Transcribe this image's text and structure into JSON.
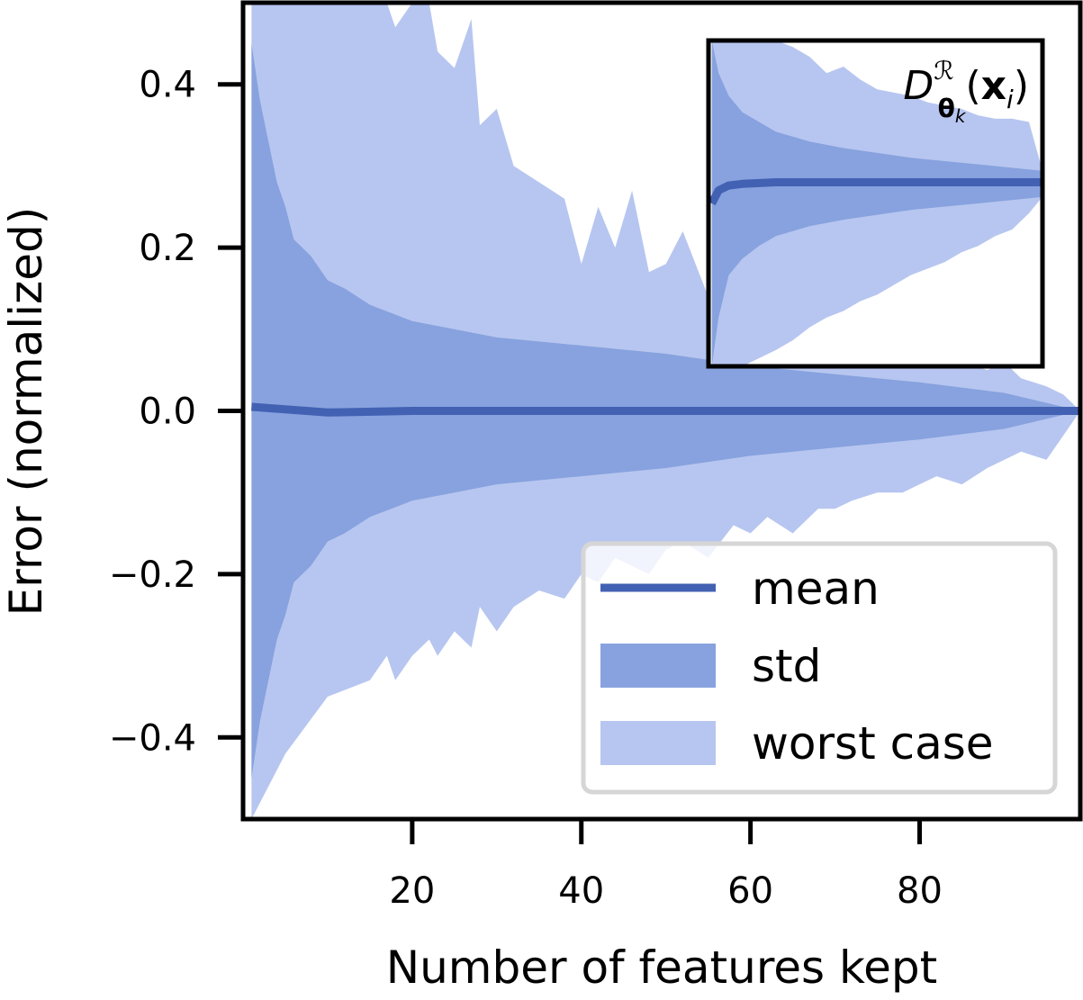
{
  "chart_data": {
    "type": "area",
    "xlabel": "Number of features kept",
    "ylabel": "Error (normalized)",
    "xlim": [
      0,
      99
    ],
    "ylim": [
      -0.5,
      0.5
    ],
    "x_ticks": [
      20,
      40,
      60,
      80
    ],
    "x_tick_labels": [
      "20",
      "40",
      "60",
      "80"
    ],
    "y_ticks": [
      0.4,
      0.2,
      0.0,
      -0.2,
      -0.4
    ],
    "y_tick_labels": [
      "0.4",
      "0.2",
      "0.0",
      "−0.2",
      "−0.4"
    ],
    "grid": false,
    "legend_position": "lower-right",
    "colors": {
      "mean": "#4361b3",
      "std": "#87a2de",
      "worst_case": "#b7c6f0"
    },
    "series": [
      {
        "name": "mean",
        "x": [
          1,
          10,
          20,
          40,
          60,
          80,
          99
        ],
        "values": [
          0.005,
          -0.002,
          0.0,
          0.0,
          0.0,
          0.0,
          0.0
        ]
      },
      {
        "name": "std",
        "x": [
          1,
          2,
          3,
          4,
          5,
          6,
          8,
          10,
          12,
          15,
          20,
          25,
          30,
          40,
          50,
          60,
          70,
          80,
          90,
          99
        ],
        "upper": [
          0.45,
          0.38,
          0.33,
          0.28,
          0.25,
          0.21,
          0.19,
          0.16,
          0.15,
          0.13,
          0.11,
          0.1,
          0.09,
          0.08,
          0.07,
          0.055,
          0.045,
          0.035,
          0.022,
          0.0
        ],
        "lower": [
          -0.45,
          -0.38,
          -0.33,
          -0.28,
          -0.25,
          -0.21,
          -0.19,
          -0.16,
          -0.15,
          -0.13,
          -0.11,
          -0.1,
          -0.09,
          -0.08,
          -0.07,
          -0.055,
          -0.045,
          -0.035,
          -0.022,
          0.0
        ]
      },
      {
        "name": "worst case",
        "x": [
          1,
          5,
          10,
          15,
          17,
          18,
          20,
          22,
          23,
          25,
          27,
          28,
          30,
          32,
          35,
          38,
          40,
          42,
          44,
          46,
          48,
          50,
          52,
          55,
          58,
          60,
          62,
          65,
          68,
          70,
          72,
          75,
          78,
          80,
          82,
          85,
          88,
          90,
          92,
          95,
          97,
          99
        ],
        "upper": [
          0.5,
          0.5,
          0.5,
          0.5,
          0.5,
          0.47,
          0.5,
          0.5,
          0.44,
          0.42,
          0.48,
          0.35,
          0.37,
          0.3,
          0.28,
          0.26,
          0.18,
          0.25,
          0.2,
          0.27,
          0.17,
          0.18,
          0.22,
          0.14,
          0.18,
          0.16,
          0.11,
          0.14,
          0.1,
          0.12,
          0.09,
          0.1,
          0.08,
          0.07,
          0.08,
          0.06,
          0.05,
          0.06,
          0.04,
          0.03,
          0.02,
          0.0
        ],
        "lower": [
          -0.5,
          -0.42,
          -0.35,
          -0.33,
          -0.3,
          -0.33,
          -0.3,
          -0.28,
          -0.3,
          -0.27,
          -0.29,
          -0.24,
          -0.27,
          -0.24,
          -0.22,
          -0.23,
          -0.2,
          -0.21,
          -0.18,
          -0.19,
          -0.2,
          -0.17,
          -0.16,
          -0.18,
          -0.14,
          -0.15,
          -0.13,
          -0.15,
          -0.12,
          -0.12,
          -0.11,
          -0.1,
          -0.1,
          -0.09,
          -0.08,
          -0.09,
          -0.07,
          -0.06,
          -0.05,
          -0.06,
          -0.03,
          0.0
        ]
      }
    ],
    "legend": [
      "mean",
      "std",
      "worst case"
    ],
    "inset": {
      "title": "D_{θ_k}^{ℛ}(x_i)",
      "title_parts": {
        "base": "D",
        "sup": "ℛ",
        "sub": "θ",
        "subsub": "k",
        "arg_open": "(",
        "arg": "x",
        "arg_sub": "i",
        "arg_close": ")"
      },
      "xlim": [
        0,
        99
      ],
      "ylim": [
        -0.5,
        0.5
      ],
      "series": [
        {
          "name": "mean",
          "x": [
            1,
            3,
            6,
            10,
            20,
            40,
            60,
            80,
            99
          ],
          "values": [
            0.0,
            0.04,
            0.055,
            0.06,
            0.065,
            0.065,
            0.065,
            0.065,
            0.065
          ]
        },
        {
          "name": "std",
          "x": [
            1,
            3,
            6,
            10,
            15,
            20,
            30,
            40,
            60,
            80,
            99
          ],
          "upper": [
            0.5,
            0.4,
            0.33,
            0.28,
            0.25,
            0.22,
            0.19,
            0.17,
            0.14,
            0.12,
            0.1
          ],
          "lower": [
            -0.5,
            -0.35,
            -0.22,
            -0.17,
            -0.13,
            -0.1,
            -0.07,
            -0.05,
            -0.02,
            0.0,
            0.02
          ]
        },
        {
          "name": "worst case",
          "x": [
            1,
            10,
            20,
            25,
            30,
            35,
            40,
            45,
            50,
            55,
            60,
            65,
            70,
            75,
            80,
            85,
            90,
            95,
            99
          ],
          "upper": [
            0.5,
            0.5,
            0.5,
            0.48,
            0.45,
            0.4,
            0.42,
            0.38,
            0.35,
            0.34,
            0.33,
            0.31,
            0.3,
            0.29,
            0.27,
            0.26,
            0.26,
            0.25,
            0.1
          ],
          "lower": [
            -0.5,
            -0.5,
            -0.45,
            -0.42,
            -0.38,
            -0.35,
            -0.33,
            -0.3,
            -0.28,
            -0.25,
            -0.22,
            -0.2,
            -0.18,
            -0.15,
            -0.13,
            -0.1,
            -0.08,
            -0.03,
            0.02
          ]
        }
      ]
    }
  }
}
